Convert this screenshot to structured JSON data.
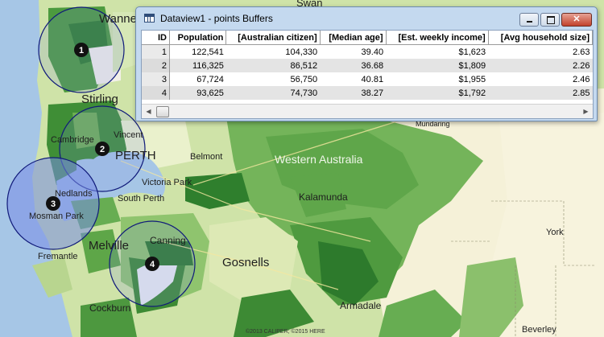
{
  "map": {
    "places": {
      "wanneroo": "Wanneroo",
      "swan": "Swan",
      "stirling": "Stirling",
      "vincent": "Vincent",
      "cambridge": "Cambridge",
      "perth": "PERTH",
      "belmont": "Belmont",
      "western_australia": "Western Australia",
      "victoria_park": "Victoria Park",
      "nedlands": "Nedlands",
      "south_perth": "South Perth",
      "kalamunda": "Kalamunda",
      "mosman_park": "Mosman Park",
      "mundaring": "Mundaring",
      "york": "York",
      "melville": "Melville",
      "canning": "Canning",
      "fremantle": "Fremantle",
      "gosnells": "Gosnells",
      "armadale": "Armadale",
      "cockburn": "Cockburn",
      "beverley": "Beverley"
    },
    "buffers": [
      "1",
      "2",
      "3",
      "4"
    ],
    "copyright": "©2013 CALIPER; ©2015 HERE"
  },
  "dataview": {
    "title": "Dataview1 - points Buffers",
    "columns": [
      "ID",
      "Population",
      "[Australian citizen]",
      "[Median age]",
      "[Est. weekly income]",
      "[Avg household size]"
    ],
    "rows": [
      [
        "1",
        "122,541",
        "104,330",
        "39.40",
        "$1,623",
        "2.63"
      ],
      [
        "2",
        "116,325",
        "86,512",
        "36.68",
        "$1,809",
        "2.26"
      ],
      [
        "3",
        "67,724",
        "56,750",
        "40.81",
        "$1,955",
        "2.46"
      ],
      [
        "4",
        "93,625",
        "74,730",
        "38.27",
        "$1,792",
        "2.85"
      ]
    ]
  }
}
